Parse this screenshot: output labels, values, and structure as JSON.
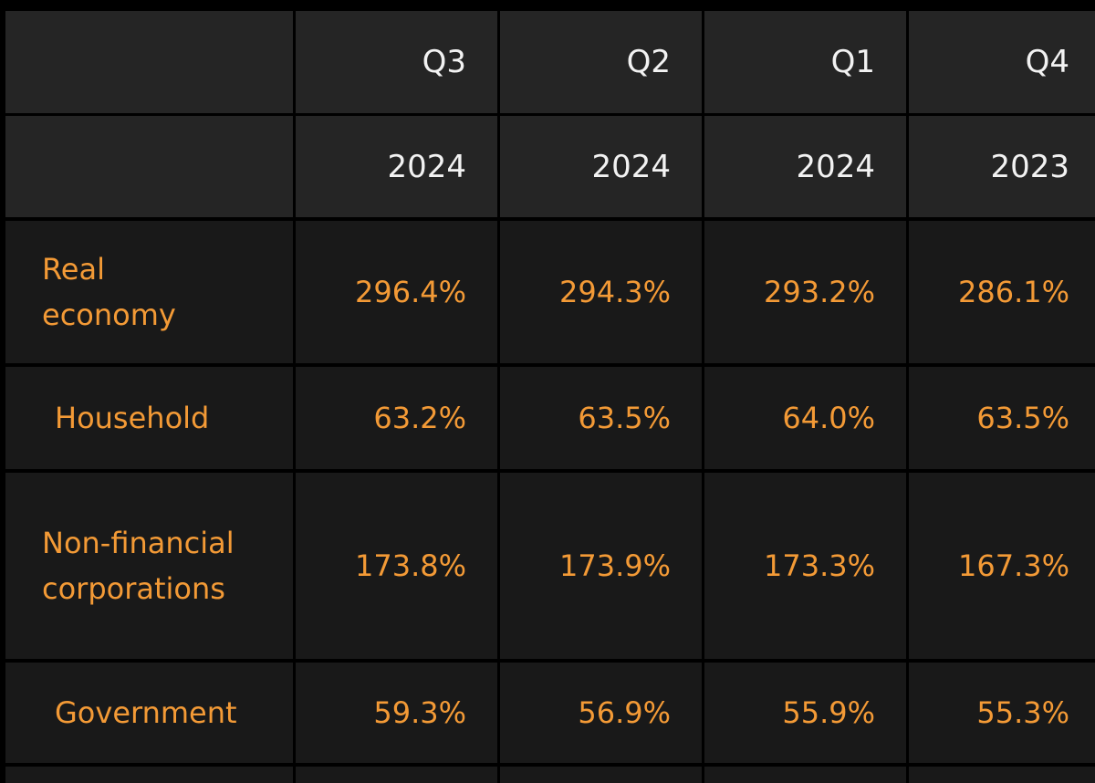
{
  "colors": {
    "page_background": "#000000",
    "header_cell_background": "#252525",
    "body_cell_background": "#191919",
    "header_text": "#f2f2f2",
    "value_text": "#f39a36"
  },
  "chart_data": {
    "type": "table",
    "columns": [
      {
        "quarter": "Q3",
        "year": "2024"
      },
      {
        "quarter": "Q2",
        "year": "2024"
      },
      {
        "quarter": "Q1",
        "year": "2024"
      },
      {
        "quarter": "Q4",
        "year": "2023"
      }
    ],
    "rows": [
      {
        "label": "Real economy",
        "values": [
          "296.4%",
          "294.3%",
          "293.2%",
          "286.1%"
        ]
      },
      {
        "label": "Household",
        "values": [
          "63.2%",
          "63.5%",
          "64.0%",
          "63.5%"
        ]
      },
      {
        "label": "Non-financial corporations",
        "values": [
          "173.8%",
          "173.9%",
          "173.3%",
          "167.3%"
        ]
      },
      {
        "label": "Government",
        "values": [
          "59.3%",
          "56.9%",
          "55.9%",
          "55.3%"
        ]
      }
    ]
  }
}
